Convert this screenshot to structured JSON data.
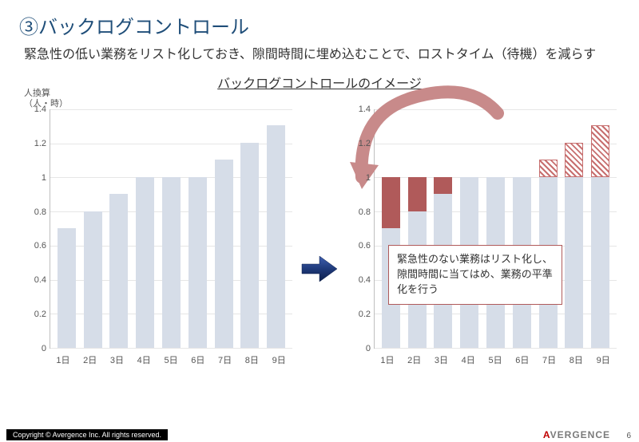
{
  "title": "③バックログコントロール",
  "subtitle": "緊急性の低い業務をリスト化しておき、隙間時間に埋め込むことで、ロストタイム（待機）を減らす",
  "chart_title": "バックログコントロールのイメージ",
  "axis_label_line1": "人換算",
  "axis_label_line2": "（人・時）",
  "yticks": [
    "0",
    "0.2",
    "0.4",
    "0.6",
    "0.8",
    "1",
    "1.2",
    "1.4"
  ],
  "ymax": 1.4,
  "categories": [
    "1日",
    "2日",
    "3日",
    "4日",
    "5日",
    "6日",
    "7日",
    "8日",
    "9日"
  ],
  "chart_left": {
    "type": "bar",
    "bar_color": "#d6dde8",
    "values": [
      0.7,
      0.8,
      0.9,
      1.0,
      1.0,
      1.0,
      1.1,
      1.2,
      1.3
    ]
  },
  "chart_right": {
    "type": "stacked-bar",
    "base_color": "#d6dde8",
    "fill_color": "#b05a5a",
    "hatch_color": "#c76f6f",
    "base": [
      0.7,
      0.8,
      0.9,
      1.0,
      1.0,
      1.0,
      1.0,
      1.0,
      1.0
    ],
    "fill": [
      0.3,
      0.2,
      0.1,
      0.0,
      0.0,
      0.0,
      0.0,
      0.0,
      0.0
    ],
    "hatch": [
      0.0,
      0.0,
      0.0,
      0.0,
      0.0,
      0.0,
      0.1,
      0.2,
      0.3
    ]
  },
  "callout_text": "緊急性のない業務はリスト化し、隙間時間に当てはめ、業務の平準化を行う",
  "colors": {
    "title_color": "#1f4e79",
    "text_color": "#333333",
    "gridline_color": "#e6e6e6",
    "axis_color": "#bfbfbf",
    "callout_border": "#b05a5a",
    "arrow_navy": "#1f3a7a",
    "arrow_curve": "#c88a8a",
    "footer_black": "#000000",
    "brand_red": "#c00000",
    "brand_grey": "#7a7a7a"
  },
  "footer": {
    "copyright": "Copyright © Avergence Inc. All rights reserved.",
    "brand_red_char": "A",
    "brand_rest": "VERGENCE",
    "page": "6"
  }
}
